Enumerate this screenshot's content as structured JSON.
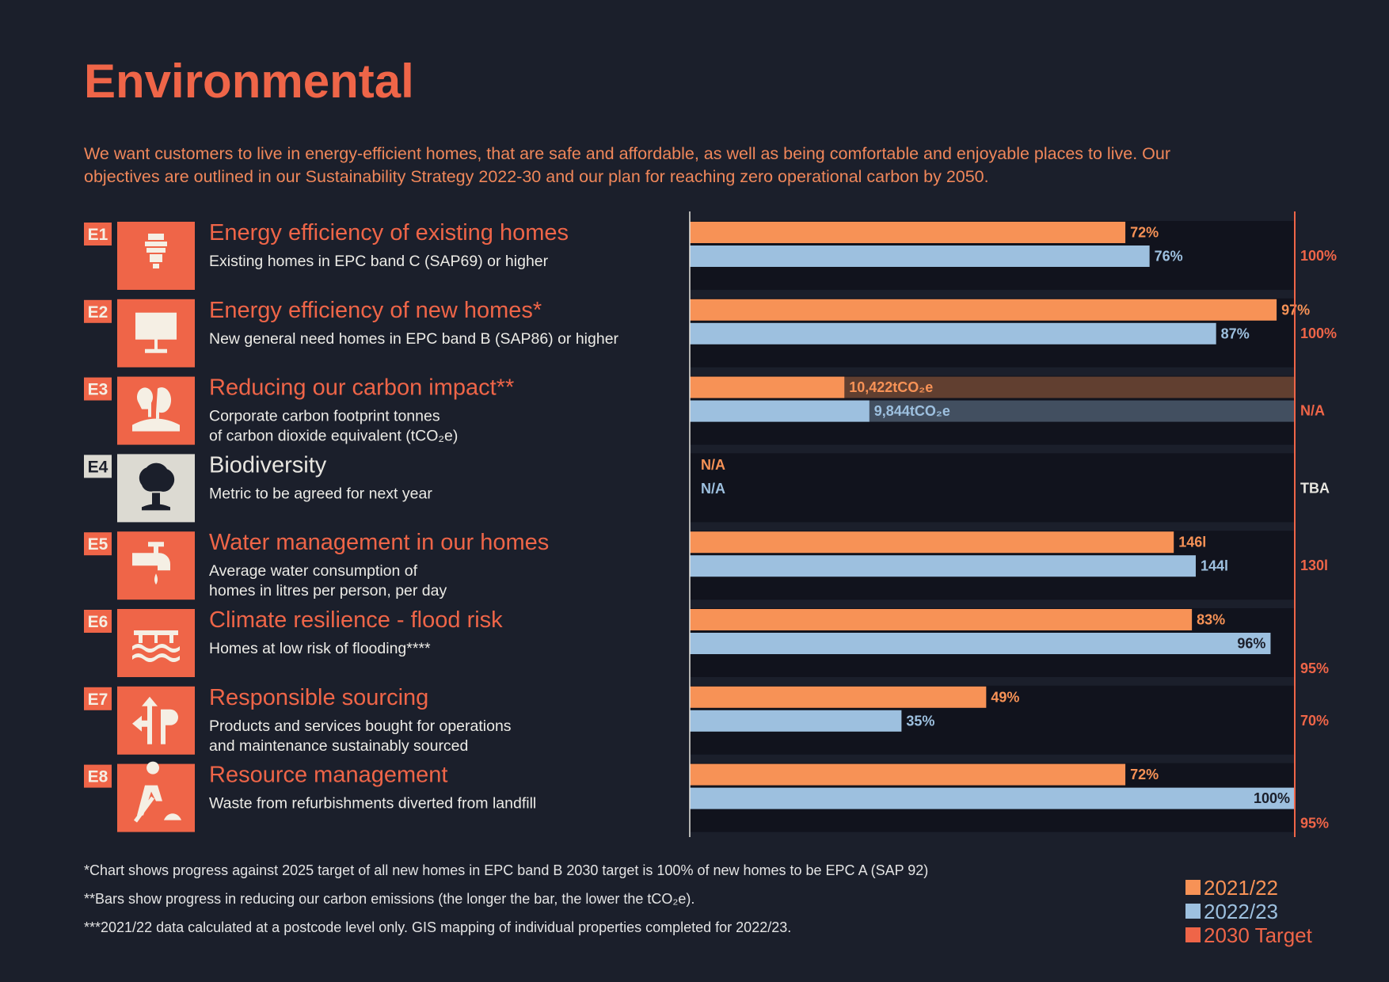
{
  "title": "Environmental",
  "intro": [
    "We want customers to live in energy-efficient homes, that are safe and affordable, as well as being comfortable and enjoyable places to live. Our",
    "objectives are outlined in our Sustainability Strategy 2022-30 and our plan for reaching zero operational carbon by 2050."
  ],
  "series": [
    {
      "name": "2021/22",
      "color": "#f79256"
    },
    {
      "name": "2022/23",
      "color": "#9dc0df"
    },
    {
      "name": "2030 Target",
      "color": "#ef6548"
    }
  ],
  "rows": [
    {
      "code": "E1",
      "title": "Energy efficiency of existing homes",
      "subtitle": [
        "Existing homes in EPC band C (SAP69) or higher"
      ],
      "accent": "#ef6548",
      "xlim": [
        0,
        100
      ],
      "values": [
        72,
        76
      ],
      "value_labels": [
        "72%",
        "76%"
      ],
      "target": 100,
      "target_label": "100%"
    },
    {
      "code": "E2",
      "title": "Energy efficiency of new homes*",
      "subtitle": [
        "New general need homes in EPC band B (SAP86) or higher"
      ],
      "accent": "#ef6548",
      "xlim": [
        0,
        100
      ],
      "values": [
        97,
        87
      ],
      "value_labels": [
        "97%",
        "87%"
      ],
      "target": 100,
      "target_label": "100%"
    },
    {
      "code": "E3",
      "title": "Reducing our carbon impact**",
      "subtitle": [
        "Corporate carbon footprint tonnes",
        "of carbon dioxide equivalent (tCO₂e)"
      ],
      "accent": "#ef6548",
      "xlim": [
        14000,
        0
      ],
      "track": true,
      "values": [
        10422,
        9844
      ],
      "value_labels": [
        "10,422tCO₂e",
        "9,844tCO₂e"
      ],
      "target": null,
      "target_label": "N/A"
    },
    {
      "code": "E4",
      "title": "Biodiversity",
      "subtitle": [
        "Metric to be agreed for next year"
      ],
      "accent": "#dcdad2",
      "xlim": [
        0,
        100
      ],
      "values": [
        null,
        null
      ],
      "value_labels": [
        "N/A",
        "N/A"
      ],
      "target": null,
      "target_label": "TBA"
    },
    {
      "code": "E5",
      "title": "Water management in our homes",
      "subtitle": [
        "Average water consumption of",
        "homes in litres per person, per day"
      ],
      "accent": "#ef6548",
      "xlim": [
        190,
        135
      ],
      "values": [
        146,
        144
      ],
      "value_labels": [
        "146l",
        "144l"
      ],
      "target": 130,
      "target_label": "130l"
    },
    {
      "code": "E6",
      "title": "Climate resilience - flood risk",
      "subtitle": [
        "Homes at low risk of flooding****"
      ],
      "accent": "#ef6548",
      "xlim": [
        0,
        100
      ],
      "values": [
        83,
        96
      ],
      "value_labels": [
        "83%",
        "96%"
      ],
      "target": 95,
      "target_label": "95%"
    },
    {
      "code": "E7",
      "title": "Responsible sourcing",
      "subtitle": [
        "Products and services bought for operations",
        "and maintenance sustainably sourced"
      ],
      "accent": "#ef6548",
      "xlim": [
        0,
        100
      ],
      "values": [
        49,
        35
      ],
      "value_labels": [
        "49%",
        "35%"
      ],
      "target": 70,
      "target_label": "70%"
    },
    {
      "code": "E8",
      "title": "Resource management",
      "subtitle": [
        "Waste from refurbishments diverted from landfill"
      ],
      "accent": "#ef6548",
      "xlim": [
        0,
        100
      ],
      "values": [
        72,
        100
      ],
      "value_labels": [
        "72%",
        "100%"
      ],
      "target": 95,
      "target_label": "95%"
    }
  ],
  "footnotes": [
    "*Chart shows progress against 2025 target of all new homes in EPC band B  2030 target is 100% of new homes to be EPC A (SAP 92)",
    "**Bars show progress in reducing our carbon emissions (the longer the bar, the lower the tCO₂e).",
    "***2021/22 data calculated at a postcode level only. GIS mapping of individual properties completed for 2022/23."
  ]
}
